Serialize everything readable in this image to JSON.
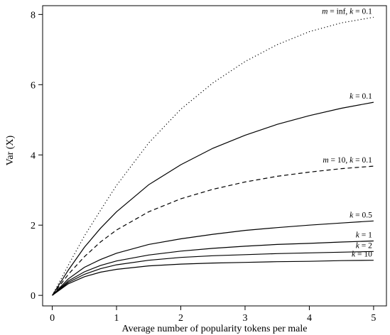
{
  "chart_data": {
    "type": "line",
    "title": "",
    "xlabel": "Average number of popularity tokens per male",
    "ylabel": "Var (X)",
    "xlim": [
      -0.15,
      5.2
    ],
    "ylim": [
      -0.3,
      8.25
    ],
    "xticks": [
      0,
      1,
      2,
      3,
      4,
      5
    ],
    "yticks": [
      0,
      2,
      4,
      6,
      8
    ],
    "grid": false,
    "legend": "none",
    "x": [
      0,
      0.25,
      0.5,
      0.75,
      1,
      1.5,
      2,
      2.5,
      3,
      3.5,
      4,
      4.5,
      5
    ],
    "series": [
      {
        "name": "m = inf, k = 0.1",
        "style": "dotted",
        "values": [
          0,
          0.86,
          1.69,
          2.42,
          3.13,
          4.34,
          5.3,
          6.05,
          6.66,
          7.14,
          7.51,
          7.76,
          7.92
        ]
      },
      {
        "name": "k = 0.1",
        "style": "solid",
        "values": [
          0,
          0.72,
          1.37,
          1.91,
          2.38,
          3.15,
          3.72,
          4.19,
          4.56,
          4.87,
          5.12,
          5.33,
          5.5
        ]
      },
      {
        "name": "m = 10, k = 0.1",
        "style": "dashed",
        "values": [
          0,
          0.6,
          1.1,
          1.52,
          1.86,
          2.38,
          2.75,
          3.02,
          3.23,
          3.39,
          3.51,
          3.61,
          3.68
        ]
      },
      {
        "name": "k = 0.5",
        "style": "solid",
        "values": [
          0,
          0.47,
          0.8,
          1.02,
          1.2,
          1.45,
          1.61,
          1.74,
          1.85,
          1.93,
          2.0,
          2.06,
          2.12
        ]
      },
      {
        "name": "k = 1",
        "style": "solid",
        "values": [
          0,
          0.41,
          0.67,
          0.85,
          0.98,
          1.15,
          1.26,
          1.34,
          1.4,
          1.45,
          1.48,
          1.52,
          1.55
        ]
      },
      {
        "name": "k = 2",
        "style": "solid",
        "values": [
          0,
          0.37,
          0.6,
          0.76,
          0.87,
          1.0,
          1.08,
          1.13,
          1.16,
          1.19,
          1.21,
          1.23,
          1.25
        ]
      },
      {
        "name": "k = 10",
        "style": "solid",
        "values": [
          0,
          0.33,
          0.53,
          0.66,
          0.74,
          0.84,
          0.89,
          0.92,
          0.94,
          0.96,
          0.97,
          0.99,
          1.0
        ]
      }
    ]
  }
}
